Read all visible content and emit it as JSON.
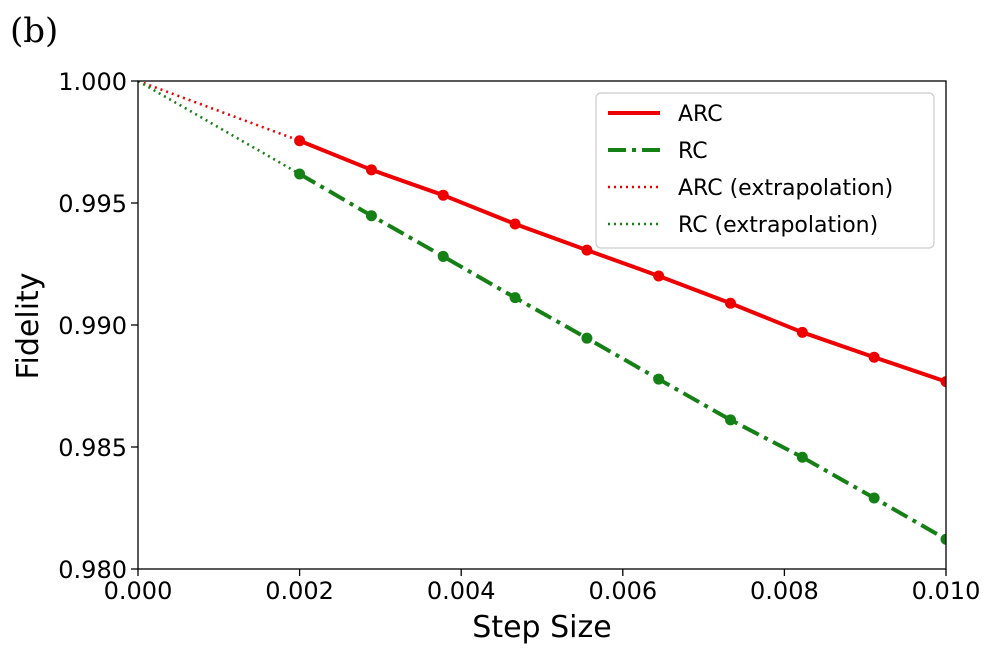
{
  "panel_label": "(b)",
  "chart_data": {
    "type": "line",
    "xlabel": "Step Size",
    "ylabel": "Fidelity",
    "xlim": [
      0.0,
      0.01
    ],
    "ylim": [
      0.98,
      1.0
    ],
    "xticks": [
      "0.000",
      "0.002",
      "0.004",
      "0.006",
      "0.008",
      "0.010"
    ],
    "yticks": [
      "0.980",
      "0.985",
      "0.990",
      "0.995",
      "1.000"
    ],
    "legend_position": "top-right",
    "grid": false,
    "series": [
      {
        "name": "ARC",
        "color": "#ee0000",
        "style": "solid",
        "markers": true,
        "x": [
          0.002,
          0.002889,
          0.003778,
          0.004667,
          0.005556,
          0.006444,
          0.007333,
          0.008222,
          0.009111,
          0.01
        ],
        "y": [
          0.99755,
          0.99636,
          0.99532,
          0.99414,
          0.99307,
          0.99201,
          0.99089,
          0.9897,
          0.98868,
          0.98768
        ]
      },
      {
        "name": "RC",
        "color": "#158015",
        "style": "dashdot",
        "markers": true,
        "x": [
          0.002,
          0.002889,
          0.003778,
          0.004667,
          0.005556,
          0.006444,
          0.007333,
          0.008222,
          0.009111,
          0.01
        ],
        "y": [
          0.99619,
          0.99448,
          0.99281,
          0.99112,
          0.98946,
          0.98778,
          0.98611,
          0.98458,
          0.98291,
          0.98122
        ]
      },
      {
        "name": "ARC (extrapolation)",
        "color": "#ee0000",
        "style": "dotted",
        "markers": false,
        "x": [
          0.0,
          0.002
        ],
        "y": [
          1.0,
          0.99755
        ]
      },
      {
        "name": "RC (extrapolation)",
        "color": "#158015",
        "style": "dotted",
        "markers": false,
        "x": [
          0.0,
          0.002
        ],
        "y": [
          1.0,
          0.99619
        ]
      }
    ]
  }
}
